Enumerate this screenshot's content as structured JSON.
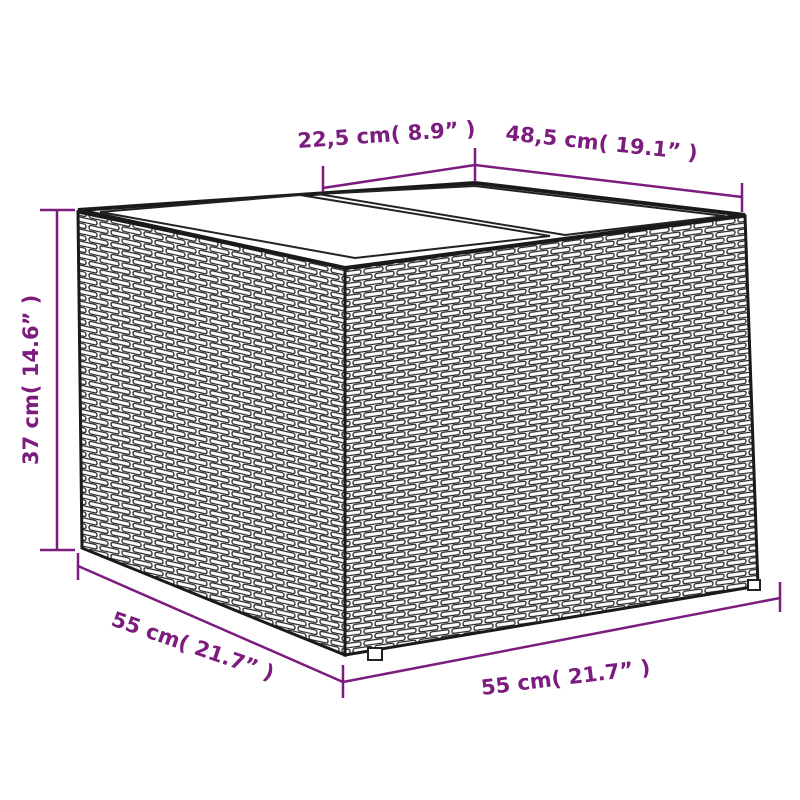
{
  "colors": {
    "dimension": "#7b1c7e",
    "outline": "#1a1a1a",
    "background": "#ffffff"
  },
  "dimensions": {
    "top_depth": "22,5 cm( 8.9” )",
    "top_width": "48,5 cm( 19.1” )",
    "height": "37 cm( 14.6” )",
    "depth": "55 cm( 21.7” )",
    "width": "55 cm( 21.7” )"
  }
}
